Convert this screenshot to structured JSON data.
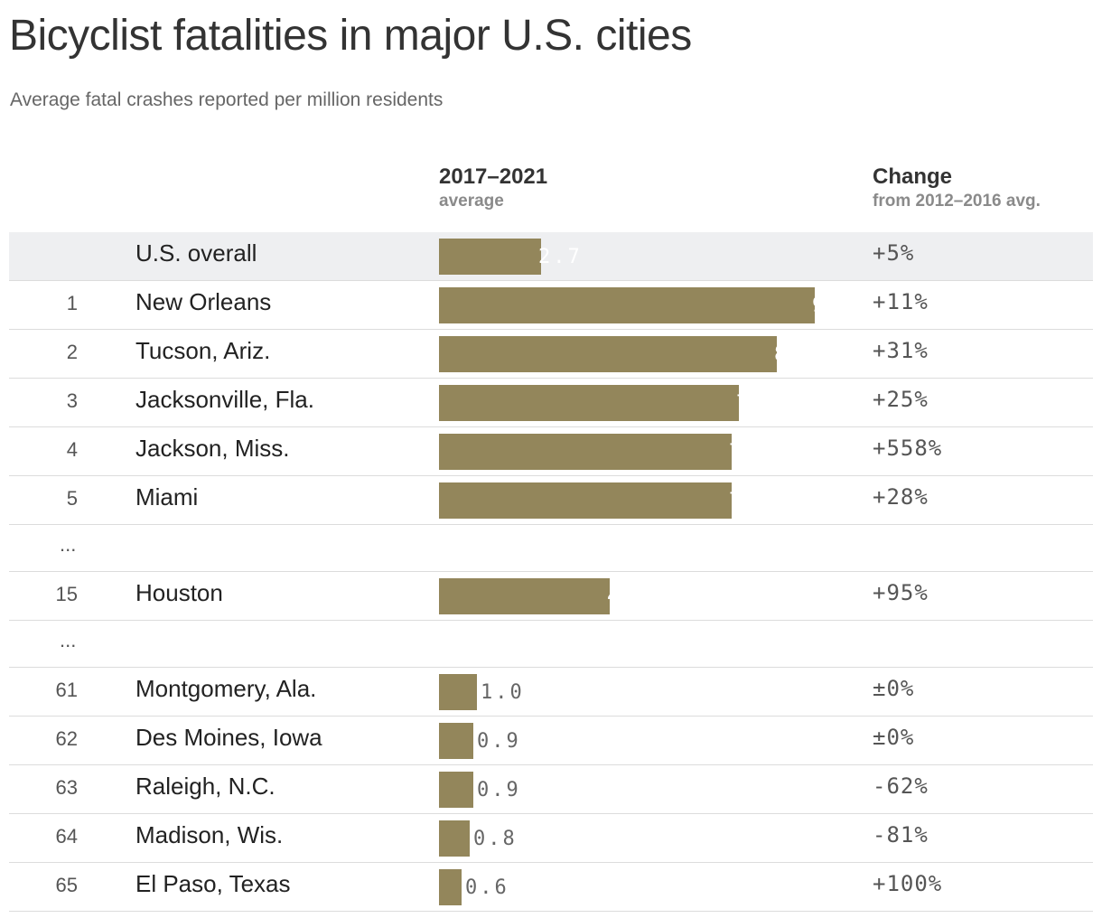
{
  "title": "Bicyclist fatalities in major U.S. cities",
  "subtitle": "Average fatal crashes reported per million residents",
  "columns": {
    "value": {
      "main": "2017–2021",
      "sub": "average"
    },
    "change": {
      "main": "Change",
      "sub": "from 2012–2016 avg."
    }
  },
  "colors": {
    "bar": "#93865b",
    "highlight_row": "#eeeff1"
  },
  "chart_data": {
    "type": "bar",
    "orientation": "horizontal",
    "title": "Bicyclist fatalities in major U.S. cities",
    "subtitle": "Average fatal crashes reported per million residents",
    "xlim": [
      0,
      10
    ],
    "rows": [
      {
        "kind": "data",
        "rank": "",
        "city": "U.S. overall",
        "value": 2.7,
        "value_label": "2.7",
        "change": "+5%",
        "highlight": true
      },
      {
        "kind": "data",
        "rank": "1",
        "city": "New Orleans",
        "value": 9.9,
        "value_label": "9.9",
        "change": "+11%"
      },
      {
        "kind": "data",
        "rank": "2",
        "city": "Tucson, Ariz.",
        "value": 8.9,
        "value_label": "8.9",
        "change": "+31%"
      },
      {
        "kind": "data",
        "rank": "3",
        "city": "Jacksonville, Fla.",
        "value": 7.9,
        "value_label": "7.9",
        "change": "+25%"
      },
      {
        "kind": "data",
        "rank": "4",
        "city": "Jackson, Miss.",
        "value": 7.7,
        "value_label": "7.7",
        "change": "+558%"
      },
      {
        "kind": "data",
        "rank": "5",
        "city": "Miami",
        "value": 7.7,
        "value_label": "7.7",
        "change": "+28%"
      },
      {
        "kind": "gap",
        "rank": "..."
      },
      {
        "kind": "data",
        "rank": "15",
        "city": "Houston",
        "value": 4.5,
        "value_label": "4.5",
        "change": "+95%"
      },
      {
        "kind": "gap",
        "rank": "..."
      },
      {
        "kind": "data",
        "rank": "61",
        "city": "Montgomery, Ala.",
        "value": 1.0,
        "value_label": "1.0",
        "change": "±0%"
      },
      {
        "kind": "data",
        "rank": "62",
        "city": "Des Moines, Iowa",
        "value": 0.9,
        "value_label": "0.9",
        "change": "±0%"
      },
      {
        "kind": "data",
        "rank": "63",
        "city": "Raleigh, N.C.",
        "value": 0.9,
        "value_label": "0.9",
        "change": "-62%"
      },
      {
        "kind": "data",
        "rank": "64",
        "city": "Madison, Wis.",
        "value": 0.8,
        "value_label": "0.8",
        "change": "-81%"
      },
      {
        "kind": "data",
        "rank": "65",
        "city": "El Paso, Texas",
        "value": 0.6,
        "value_label": "0.6",
        "change": "+100%"
      }
    ]
  }
}
